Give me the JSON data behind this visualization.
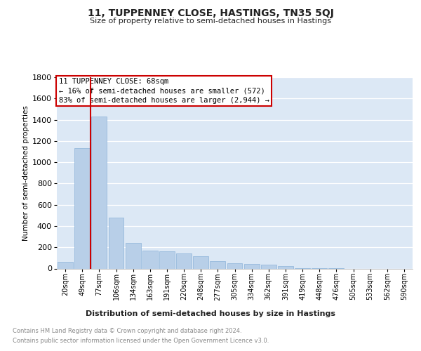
{
  "title": "11, TUPPENNEY CLOSE, HASTINGS, TN35 5QJ",
  "subtitle": "Size of property relative to semi-detached houses in Hastings",
  "xlabel": "Distribution of semi-detached houses by size in Hastings",
  "ylabel": "Number of semi-detached properties",
  "categories": [
    "20sqm",
    "49sqm",
    "77sqm",
    "106sqm",
    "134sqm",
    "163sqm",
    "191sqm",
    "220sqm",
    "248sqm",
    "277sqm",
    "305sqm",
    "334sqm",
    "362sqm",
    "391sqm",
    "419sqm",
    "448sqm",
    "476sqm",
    "505sqm",
    "533sqm",
    "562sqm",
    "590sqm"
  ],
  "values": [
    60,
    1130,
    1430,
    480,
    240,
    170,
    160,
    140,
    115,
    70,
    50,
    40,
    35,
    25,
    5,
    5,
    5,
    0,
    0,
    0,
    0
  ],
  "bar_color": "#b8cfe8",
  "bar_edge_color": "#8db3d9",
  "highlight_index": 2,
  "highlight_color": "#cc0000",
  "annotation_line1": "11 TUPPENNEY CLOSE: 68sqm",
  "annotation_line2": "← 16% of semi-detached houses are smaller (572)",
  "annotation_line3": "83% of semi-detached houses are larger (2,944) →",
  "annotation_box_edge_color": "#cc0000",
  "ylim": [
    0,
    1800
  ],
  "yticks": [
    0,
    200,
    400,
    600,
    800,
    1000,
    1200,
    1400,
    1600,
    1800
  ],
  "bg_color": "#dce8f5",
  "grid_color": "#ffffff",
  "footer_line1": "Contains HM Land Registry data © Crown copyright and database right 2024.",
  "footer_line2": "Contains public sector information licensed under the Open Government Licence v3.0."
}
